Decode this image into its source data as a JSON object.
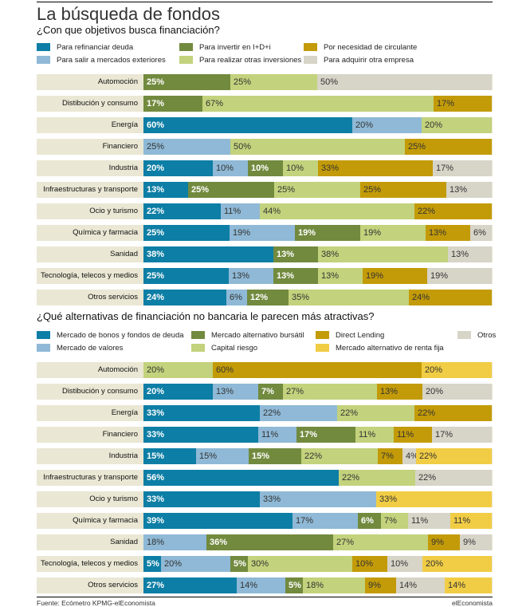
{
  "title": "La búsqueda de fondos",
  "footer": {
    "source": "Fuente: Ecómetro KPMG-elEconomista",
    "brand": "elEconomista"
  },
  "chart_data": [
    {
      "type": "bar",
      "stacked": true,
      "orientation": "horizontal",
      "title": "¿Con que objetivos busca financiación?",
      "xlim": [
        0,
        100
      ],
      "unit": "%",
      "legend_placement": "top",
      "colors": {
        "refinanciar": "#0d7ea5",
        "exteriores": "#8fb9d6",
        "id": "#728a3e",
        "inversiones": "#c3d27c",
        "circulante": "#c39b08",
        "empresa": "#d7d4c8"
      },
      "series": [
        {
          "key": "refinanciar",
          "name": "Para refinanciar deuda"
        },
        {
          "key": "exteriores",
          "name": "Para salir a mercados exteriores"
        },
        {
          "key": "id",
          "name": "Para invertir en I+D+i"
        },
        {
          "key": "inversiones",
          "name": "Para realizar otras inversiones"
        },
        {
          "key": "circulante",
          "name": "Por necesidad de circulante"
        },
        {
          "key": "empresa",
          "name": "Para adquirir otra empresa"
        }
      ],
      "categories": [
        "Automoción",
        "Distibución y consumo",
        "Energía",
        "Financiero",
        "Industria",
        "Infraestructuras y transporte",
        "Ocio y turismo",
        "Química y farmacia",
        "Sanidad",
        "Tecnología, telecos y medios",
        "Otros servicios"
      ],
      "rows": [
        [
          [
            "id",
            25
          ],
          [
            "inversiones",
            25
          ],
          [
            "empresa",
            50
          ]
        ],
        [
          [
            "id",
            17
          ],
          [
            "inversiones",
            67
          ],
          [
            "circulante",
            17
          ]
        ],
        [
          [
            "refinanciar",
            60
          ],
          [
            "exteriores",
            20
          ],
          [
            "inversiones",
            20
          ]
        ],
        [
          [
            "exteriores",
            25
          ],
          [
            "inversiones",
            50
          ],
          [
            "circulante",
            25
          ]
        ],
        [
          [
            "refinanciar",
            20
          ],
          [
            "exteriores",
            10
          ],
          [
            "id",
            10
          ],
          [
            "inversiones",
            10
          ],
          [
            "circulante",
            33
          ],
          [
            "empresa",
            17
          ]
        ],
        [
          [
            "refinanciar",
            13
          ],
          [
            "id",
            25
          ],
          [
            "inversiones",
            25
          ],
          [
            "circulante",
            25
          ],
          [
            "empresa",
            13
          ]
        ],
        [
          [
            "refinanciar",
            22
          ],
          [
            "exteriores",
            11
          ],
          [
            "inversiones",
            44
          ],
          [
            "circulante",
            22
          ]
        ],
        [
          [
            "refinanciar",
            25
          ],
          [
            "exteriores",
            19
          ],
          [
            "id",
            19
          ],
          [
            "inversiones",
            19
          ],
          [
            "circulante",
            13
          ],
          [
            "empresa",
            6
          ]
        ],
        [
          [
            "refinanciar",
            38
          ],
          [
            "id",
            13
          ],
          [
            "inversiones",
            38
          ],
          [
            "empresa",
            13
          ]
        ],
        [
          [
            "refinanciar",
            25
          ],
          [
            "exteriores",
            13
          ],
          [
            "id",
            13
          ],
          [
            "inversiones",
            13
          ],
          [
            "circulante",
            19
          ],
          [
            "empresa",
            19
          ]
        ],
        [
          [
            "refinanciar",
            24
          ],
          [
            "exteriores",
            6
          ],
          [
            "id",
            12
          ],
          [
            "inversiones",
            35
          ],
          [
            "circulante",
            24
          ]
        ]
      ]
    },
    {
      "type": "bar",
      "stacked": true,
      "orientation": "horizontal",
      "title": "¿Qué alternativas de financiación no bancaria le parecen más atractivas?",
      "xlim": [
        0,
        100
      ],
      "unit": "%",
      "legend_placement": "top",
      "colors": {
        "bonos": "#0d7ea5",
        "valores": "#8fb9d6",
        "bursatil": "#728a3e",
        "capital": "#c3d27c",
        "direct": "#c39b08",
        "rentafija": "#f1cd45",
        "otros": "#d7d4c8"
      },
      "series": [
        {
          "key": "bonos",
          "name": "Mercado de bonos y fondos de deuda"
        },
        {
          "key": "valores",
          "name": "Mercado de valores"
        },
        {
          "key": "bursatil",
          "name": "Mercado alternativo bursátil"
        },
        {
          "key": "capital",
          "name": "Capital riesgo"
        },
        {
          "key": "direct",
          "name": "Direct Lending"
        },
        {
          "key": "rentafija",
          "name": "Mercado alternativo de renta fija"
        },
        {
          "key": "otros",
          "name": "Otros"
        }
      ],
      "categories": [
        "Automoción",
        "Distibución y consumo",
        "Energía",
        "Financiero",
        "Industria",
        "Infraestructuras y transporte",
        "Ocio y turismo",
        "Química y farmacia",
        "Sanidad",
        "Tecnología, telecos y medios",
        "Otros servicios"
      ],
      "rows": [
        [
          [
            "capital",
            20
          ],
          [
            "direct",
            60
          ],
          [
            "rentafija",
            20
          ]
        ],
        [
          [
            "bonos",
            20
          ],
          [
            "valores",
            13
          ],
          [
            "bursatil",
            7
          ],
          [
            "capital",
            27
          ],
          [
            "direct",
            13
          ],
          [
            "otros",
            20
          ]
        ],
        [
          [
            "bonos",
            33
          ],
          [
            "valores",
            22
          ],
          [
            "capital",
            22
          ],
          [
            "direct",
            22
          ]
        ],
        [
          [
            "bonos",
            33
          ],
          [
            "valores",
            11
          ],
          [
            "bursatil",
            17
          ],
          [
            "capital",
            11
          ],
          [
            "direct",
            11
          ],
          [
            "otros",
            17
          ]
        ],
        [
          [
            "bonos",
            15
          ],
          [
            "valores",
            15
          ],
          [
            "bursatil",
            15
          ],
          [
            "capital",
            22
          ],
          [
            "direct",
            7
          ],
          [
            "otros",
            4
          ],
          [
            "rentafija",
            22
          ]
        ],
        [
          [
            "bonos",
            56
          ],
          [
            "capital",
            22
          ],
          [
            "otros",
            22
          ]
        ],
        [
          [
            "bonos",
            33
          ],
          [
            "valores",
            33
          ],
          [
            "rentafija",
            33
          ]
        ],
        [
          [
            "bonos",
            39
          ],
          [
            "valores",
            17
          ],
          [
            "bursatil",
            6
          ],
          [
            "capital",
            7
          ],
          [
            "otros",
            11
          ],
          [
            "rentafija",
            11
          ]
        ],
        [
          [
            "valores",
            18
          ],
          [
            "bursatil",
            36
          ],
          [
            "capital",
            27
          ],
          [
            "direct",
            9
          ],
          [
            "otros",
            9
          ]
        ],
        [
          [
            "bonos",
            5
          ],
          [
            "valores",
            20
          ],
          [
            "bursatil",
            5
          ],
          [
            "capital",
            30
          ],
          [
            "direct",
            10
          ],
          [
            "otros",
            10
          ],
          [
            "rentafija",
            20
          ]
        ],
        [
          [
            "bonos",
            27
          ],
          [
            "valores",
            14
          ],
          [
            "bursatil",
            5
          ],
          [
            "capital",
            18
          ],
          [
            "direct",
            9
          ],
          [
            "otros",
            14
          ],
          [
            "rentafija",
            14
          ]
        ]
      ]
    }
  ]
}
